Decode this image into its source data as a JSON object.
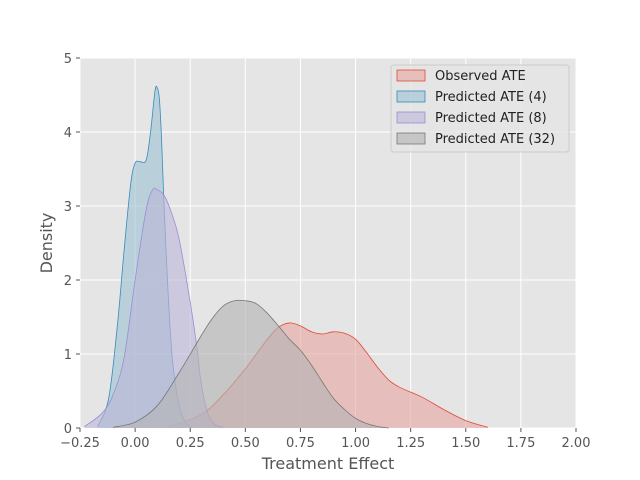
{
  "chart_data": {
    "type": "area",
    "title": "",
    "xlabel": "Treatment Effect",
    "ylabel": "Density",
    "xlim": [
      -0.25,
      2.0
    ],
    "ylim": [
      0,
      5
    ],
    "xticks": [
      -0.25,
      0.0,
      0.25,
      0.5,
      0.75,
      1.0,
      1.25,
      1.5,
      1.75,
      2.0
    ],
    "xtick_labels": [
      "−0.25",
      "0.00",
      "0.25",
      "0.50",
      "0.75",
      "1.00",
      "1.25",
      "1.50",
      "1.75",
      "2.00"
    ],
    "yticks": [
      0,
      1,
      2,
      3,
      4,
      5
    ],
    "ytick_labels": [
      "0",
      "1",
      "2",
      "3",
      "4",
      "5"
    ],
    "grid": true,
    "legend_position": "top-right",
    "series": [
      {
        "name": "Observed ATE",
        "fill": "#e6a6a1",
        "stroke": "#e24a33",
        "x": [
          0.15,
          0.3,
          0.4,
          0.5,
          0.55,
          0.6,
          0.65,
          0.7,
          0.75,
          0.8,
          0.85,
          0.9,
          0.95,
          1.0,
          1.05,
          1.1,
          1.15,
          1.2,
          1.3,
          1.4,
          1.5,
          1.6
        ],
        "y": [
          0.02,
          0.18,
          0.45,
          0.8,
          1.0,
          1.2,
          1.36,
          1.42,
          1.38,
          1.3,
          1.27,
          1.3,
          1.28,
          1.2,
          1.02,
          0.82,
          0.65,
          0.55,
          0.42,
          0.25,
          0.1,
          0.01
        ]
      },
      {
        "name": "Predicted ATE (4)",
        "fill": "#9ec4d3",
        "stroke": "#348abd",
        "x": [
          -0.17,
          -0.12,
          -0.08,
          -0.05,
          -0.02,
          0.0,
          0.02,
          0.05,
          0.07,
          0.09,
          0.1,
          0.11,
          0.12,
          0.13,
          0.15,
          0.17,
          0.2,
          0.23,
          0.26
        ],
        "y": [
          0.02,
          0.4,
          1.4,
          2.4,
          3.3,
          3.58,
          3.6,
          3.62,
          4.0,
          4.55,
          4.6,
          4.45,
          3.9,
          3.1,
          1.8,
          0.9,
          0.3,
          0.07,
          0.01
        ]
      },
      {
        "name": "Predicted ATE (8)",
        "fill": "#bdb6d9",
        "stroke": "#988ed5",
        "x": [
          -0.23,
          -0.15,
          -0.1,
          -0.05,
          0.0,
          0.05,
          0.08,
          0.1,
          0.13,
          0.16,
          0.2,
          0.25,
          0.28,
          0.3,
          0.33,
          0.36,
          0.4
        ],
        "y": [
          0.02,
          0.2,
          0.45,
          0.95,
          2.0,
          2.95,
          3.22,
          3.22,
          3.15,
          2.95,
          2.55,
          1.7,
          1.1,
          0.6,
          0.2,
          0.05,
          0.01
        ]
      },
      {
        "name": "Predicted ATE (32)",
        "fill": "#b3b3b3",
        "stroke": "#777777",
        "x": [
          -0.1,
          0.0,
          0.1,
          0.2,
          0.3,
          0.35,
          0.4,
          0.45,
          0.5,
          0.55,
          0.6,
          0.65,
          0.7,
          0.75,
          0.8,
          0.85,
          0.9,
          0.95,
          1.0,
          1.05,
          1.1,
          1.15
        ],
        "y": [
          0.01,
          0.08,
          0.3,
          0.75,
          1.25,
          1.48,
          1.65,
          1.72,
          1.72,
          1.68,
          1.55,
          1.38,
          1.2,
          1.05,
          0.85,
          0.62,
          0.4,
          0.25,
          0.13,
          0.06,
          0.02,
          0.0
        ]
      }
    ]
  }
}
